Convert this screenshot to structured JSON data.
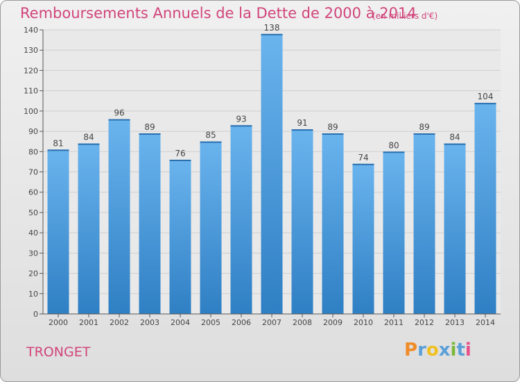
{
  "header": {
    "title": "Remboursements Annuels de la Dette de 2000 à 2014",
    "unit": "(en milliers d'€)"
  },
  "place_name": "TRONGET",
  "logo": {
    "letters": [
      "P",
      "r",
      "o",
      "x",
      "i",
      "t",
      "i"
    ],
    "colors": [
      "#f08c28",
      "#5aa0d8",
      "#f0c020",
      "#5aa0d8",
      "#7ab83c",
      "#5aa0d8",
      "#e8508a"
    ]
  },
  "colors": {
    "accent": "#d1447a",
    "bar": "#3d8fd4",
    "bar_light": "#6ab4ee"
  },
  "chart_data": {
    "type": "bar",
    "title": "Remboursements Annuels de la Dette de 2000 à 2014",
    "categories": [
      "2000",
      "2001",
      "2002",
      "2003",
      "2004",
      "2005",
      "2006",
      "2007",
      "2008",
      "2009",
      "2010",
      "2011",
      "2012",
      "2013",
      "2014"
    ],
    "values": [
      81,
      84,
      96,
      89,
      76,
      85,
      93,
      138,
      91,
      89,
      74,
      80,
      89,
      84,
      104
    ],
    "ylim": [
      0,
      140
    ],
    "yticks": [
      0,
      10,
      20,
      30,
      40,
      50,
      60,
      70,
      80,
      90,
      100,
      110,
      120,
      130,
      140
    ],
    "grid": true,
    "data_labels": true
  }
}
